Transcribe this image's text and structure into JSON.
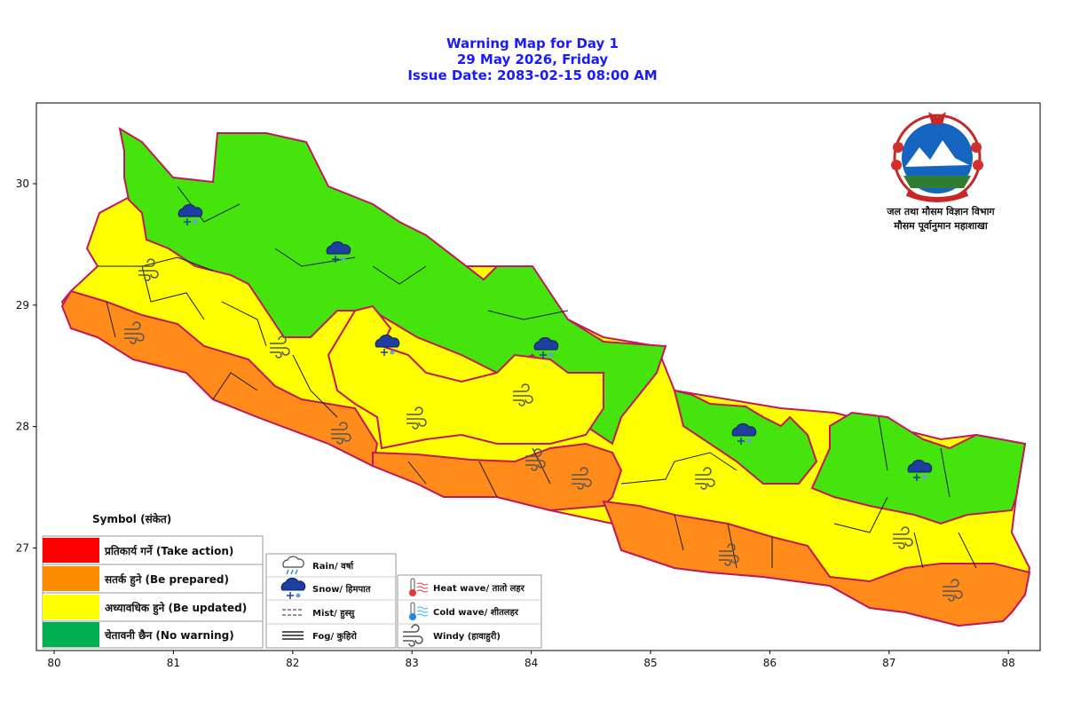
{
  "title": {
    "line1": "Warning Map for Day 1",
    "line2": "29 May 2026, Friday",
    "line3": "Issue Date: 2083-02-15 08:00 AM"
  },
  "axes": {
    "x_ticks": [
      "80",
      "81",
      "82",
      "83",
      "84",
      "85",
      "86",
      "87",
      "88"
    ],
    "y_ticks": [
      "30",
      "29",
      "28",
      "27"
    ]
  },
  "department": {
    "line1": "जल तथा मौसम विज्ञान विभाग",
    "line2": "मौसम पूर्वानुमान महाशाखा"
  },
  "legend": {
    "title": "Symbol (संकेत)",
    "levels": [
      {
        "label": "प्रतिकार्य गर्ने (Take action)",
        "color": "#ff0000"
      },
      {
        "label": "सतर्क हुने (Be prepared)",
        "color": "#ff8c00"
      },
      {
        "label": "अध्यावधिक हुने (Be updated)",
        "color": "#ffff00"
      },
      {
        "label": "चेतावनी छैन (No warning)",
        "color": "#00b050"
      }
    ],
    "symbols_left": [
      {
        "label": "Rain/ वर्षा",
        "icon": "rain-icon"
      },
      {
        "label": "Snow/ हिमपात",
        "icon": "snow-icon"
      },
      {
        "label": "Mist/ हुस्सु",
        "icon": "mist-icon"
      },
      {
        "label": "Fog/ कुहिरो",
        "icon": "fog-icon"
      }
    ],
    "symbols_right": [
      {
        "label": "Heat wave/ तातो लहर",
        "icon": "heat-wave-icon"
      },
      {
        "label": "Cold wave/ शीतलहर",
        "icon": "cold-wave-icon"
      },
      {
        "label": "Windy (हावाहुरी)",
        "icon": "windy-icon"
      }
    ]
  },
  "map_colors": {
    "green": "#44e40c",
    "yellow": "#ffff00",
    "orange": "#ff8c1a",
    "province_border": "#c2185b",
    "district_border": "#1a1a1a"
  }
}
